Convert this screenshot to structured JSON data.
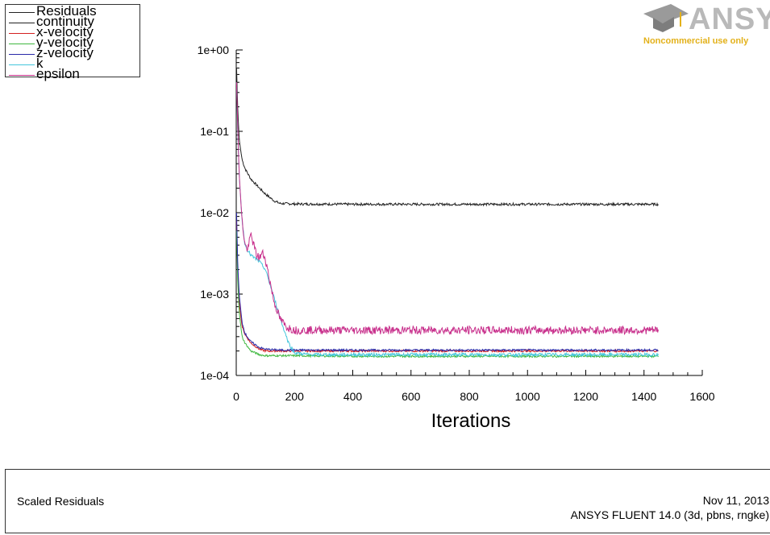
{
  "legend": {
    "title": "Residuals",
    "entries": [
      {
        "label": "continuity",
        "color": "#222222"
      },
      {
        "label": "x-velocity",
        "color": "#d42020"
      },
      {
        "label": "y-velocity",
        "color": "#3fb83f"
      },
      {
        "label": "z-velocity",
        "color": "#2a2aa8"
      },
      {
        "label": "k",
        "color": "#44c6dc"
      },
      {
        "label": "epsilon",
        "color": "#c8308c"
      }
    ]
  },
  "logo": {
    "word": "ANSYS",
    "subtitle": "Noncommercial use only"
  },
  "footer": {
    "title": "Scaled Residuals",
    "date": "Nov 11, 2013",
    "version": "ANSYS FLUENT 14.0 (3d, pbns, rngke)"
  },
  "chart_data": {
    "type": "line",
    "title": "",
    "xlabel": "Iterations",
    "ylabel": "",
    "xlim": [
      0,
      1600
    ],
    "ylim": [
      0.0001,
      1
    ],
    "yscale": "log",
    "xticks": [
      0,
      200,
      400,
      600,
      800,
      1000,
      1200,
      1400,
      1600
    ],
    "xtick_labels": [
      "0",
      "200",
      "400",
      "600",
      "800",
      "1000",
      "1200",
      "1400",
      "1600"
    ],
    "yticks": [
      0.0001,
      0.001,
      0.01,
      0.1,
      1
    ],
    "ytick_labels": [
      "1e-04",
      "1e-03",
      "1e-02",
      "1e-01",
      "1e+00"
    ],
    "grid": false,
    "legend_position": "top-left",
    "series": [
      {
        "name": "continuity",
        "color": "#222222",
        "noise": 0.015,
        "x": [
          1,
          5,
          10,
          20,
          30,
          50,
          80,
          100,
          130,
          150,
          200,
          400,
          800,
          1200,
          1450
        ],
        "y": [
          0.6,
          0.2,
          0.08,
          0.045,
          0.035,
          0.026,
          0.02,
          0.017,
          0.014,
          0.013,
          0.0128,
          0.0127,
          0.0127,
          0.0127,
          0.0127
        ]
      },
      {
        "name": "x-velocity",
        "color": "#d42020",
        "noise": 0.012,
        "x": [
          1,
          5,
          10,
          20,
          30,
          50,
          80,
          100,
          150,
          200,
          400,
          800,
          1200,
          1450
        ],
        "y": [
          0.008,
          0.002,
          0.0008,
          0.0004,
          0.00032,
          0.00025,
          0.00021,
          0.0002,
          0.0002,
          0.0002,
          0.0002,
          0.0002,
          0.0002,
          0.0002
        ]
      },
      {
        "name": "y-velocity",
        "color": "#3fb83f",
        "noise": 0.012,
        "x": [
          1,
          5,
          10,
          20,
          30,
          50,
          80,
          100,
          150,
          200,
          400,
          800,
          1200,
          1450
        ],
        "y": [
          0.006,
          0.0015,
          0.0006,
          0.0003,
          0.00025,
          0.0002,
          0.00018,
          0.000175,
          0.000175,
          0.000175,
          0.000172,
          0.000172,
          0.000172,
          0.000172
        ]
      },
      {
        "name": "z-velocity",
        "color": "#2a2aa8",
        "noise": 0.012,
        "x": [
          1,
          5,
          10,
          20,
          30,
          50,
          80,
          100,
          150,
          200,
          400,
          800,
          1200,
          1450
        ],
        "y": [
          0.01,
          0.0025,
          0.001,
          0.00045,
          0.00033,
          0.00026,
          0.00022,
          0.00021,
          0.000205,
          0.000205,
          0.000205,
          0.000205,
          0.000205,
          0.000205
        ]
      },
      {
        "name": "k",
        "color": "#44c6dc",
        "noise": 0.02,
        "x": [
          1,
          5,
          10,
          20,
          30,
          50,
          80,
          100,
          130,
          160,
          180,
          200,
          250,
          400,
          800,
          1200,
          1450
        ],
        "y": [
          0.4,
          0.1,
          0.03,
          0.008,
          0.004,
          0.003,
          0.0025,
          0.002,
          0.0009,
          0.0004,
          0.00025,
          0.00019,
          0.00018,
          0.00018,
          0.00018,
          0.00018,
          0.00018
        ]
      },
      {
        "name": "epsilon",
        "color": "#c8308c",
        "noise": 0.05,
        "x": [
          1,
          5,
          10,
          20,
          30,
          40,
          50,
          60,
          70,
          80,
          90,
          100,
          110,
          130,
          150,
          170,
          200,
          400,
          800,
          1200,
          1450
        ],
        "y": [
          0.4,
          0.12,
          0.03,
          0.008,
          0.004,
          0.0035,
          0.0055,
          0.004,
          0.003,
          0.0028,
          0.0032,
          0.0027,
          0.0018,
          0.0008,
          0.0005,
          0.0004,
          0.00036,
          0.00036,
          0.00036,
          0.00036,
          0.00036
        ]
      }
    ]
  }
}
